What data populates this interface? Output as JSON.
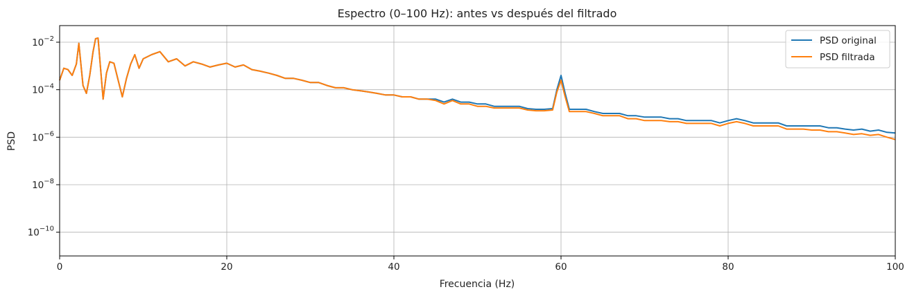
{
  "chart_data": {
    "type": "line",
    "title": "Espectro (0–100 Hz): antes vs después del filtrado",
    "xlabel": "Frecuencia (Hz)",
    "ylabel": "PSD",
    "xlim": [
      0,
      100
    ],
    "ylim": [
      1e-11,
      0.05
    ],
    "yscale": "log",
    "grid": true,
    "legend_position": "top-right",
    "x_ticks": [
      0,
      20,
      40,
      60,
      80,
      100
    ],
    "y_ticks": [
      {
        "value": 1e-10,
        "base": "10",
        "exp": "−10"
      },
      {
        "value": 1e-08,
        "base": "10",
        "exp": "−8"
      },
      {
        "value": 1e-06,
        "base": "10",
        "exp": "−6"
      },
      {
        "value": 0.0001,
        "base": "10",
        "exp": "−4"
      },
      {
        "value": 0.01,
        "base": "10",
        "exp": "−2"
      }
    ],
    "series": [
      {
        "name": "PSD original",
        "color": "#1f77b4",
        "x": [
          0,
          0.5,
          1,
          1.5,
          2,
          2.3,
          2.8,
          3.2,
          3.6,
          4,
          4.3,
          4.6,
          4.9,
          5.2,
          5.6,
          6,
          6.5,
          7,
          7.5,
          8,
          8.5,
          9,
          9.5,
          10,
          11,
          12,
          13,
          14,
          15,
          16,
          17,
          18,
          19,
          20,
          21,
          22,
          23,
          24,
          25,
          26,
          27,
          28,
          29,
          30,
          31,
          32,
          33,
          34,
          35,
          36,
          37,
          38,
          39,
          40,
          41,
          42,
          43,
          44,
          45,
          46,
          47,
          48,
          49,
          50,
          51,
          52,
          53,
          54,
          55,
          56,
          57,
          58,
          59,
          59.5,
          60,
          60.5,
          61,
          62,
          63,
          64,
          65,
          66,
          67,
          68,
          69,
          70,
          71,
          72,
          73,
          74,
          75,
          76,
          77,
          78,
          79,
          80,
          81,
          82,
          83,
          84,
          85,
          86,
          87,
          88,
          89,
          90,
          91,
          92,
          93,
          94,
          95,
          96,
          97,
          98,
          99,
          100
        ],
        "values": [
          0.00025,
          0.0008,
          0.0007,
          0.0004,
          0.0012,
          0.009,
          0.00015,
          7e-05,
          0.0004,
          0.004,
          0.014,
          0.015,
          0.0008,
          4e-05,
          0.0005,
          0.0015,
          0.0013,
          0.00025,
          5e-05,
          0.0003,
          0.0012,
          0.003,
          0.0008,
          0.002,
          0.003,
          0.004,
          0.0015,
          0.002,
          0.001,
          0.0015,
          0.0012,
          0.0009,
          0.0011,
          0.0013,
          0.0009,
          0.0011,
          0.0007,
          0.0006,
          0.0005,
          0.0004,
          0.0003,
          0.0003,
          0.00025,
          0.0002,
          0.0002,
          0.00015,
          0.00012,
          0.00012,
          0.0001,
          9e-05,
          8e-05,
          7e-05,
          6e-05,
          6e-05,
          5e-05,
          5e-05,
          4e-05,
          4e-05,
          4e-05,
          3e-05,
          4e-05,
          3e-05,
          3e-05,
          2.5e-05,
          2.5e-05,
          2e-05,
          2e-05,
          2e-05,
          2e-05,
          1.6e-05,
          1.5e-05,
          1.5e-05,
          1.6e-05,
          0.0001,
          0.0004,
          7e-05,
          1.5e-05,
          1.5e-05,
          1.5e-05,
          1.2e-05,
          1e-05,
          1e-05,
          1e-05,
          8e-06,
          8e-06,
          7e-06,
          7e-06,
          7e-06,
          6e-06,
          6e-06,
          5e-06,
          5e-06,
          5e-06,
          5e-06,
          4e-06,
          5e-06,
          6e-06,
          5e-06,
          4e-06,
          4e-06,
          4e-06,
          4e-06,
          3e-06,
          3e-06,
          3e-06,
          3e-06,
          3e-06,
          2.5e-06,
          2.5e-06,
          2.2e-06,
          2e-06,
          2.2e-06,
          1.8e-06,
          2e-06,
          1.6e-06,
          1.5e-06
        ]
      },
      {
        "name": "PSD filtrada",
        "color": "#ff7f0e",
        "x": [
          0,
          0.5,
          1,
          1.5,
          2,
          2.3,
          2.8,
          3.2,
          3.6,
          4,
          4.3,
          4.6,
          4.9,
          5.2,
          5.6,
          6,
          6.5,
          7,
          7.5,
          8,
          8.5,
          9,
          9.5,
          10,
          11,
          12,
          13,
          14,
          15,
          16,
          17,
          18,
          19,
          20,
          21,
          22,
          23,
          24,
          25,
          26,
          27,
          28,
          29,
          30,
          31,
          32,
          33,
          34,
          35,
          36,
          37,
          38,
          39,
          40,
          41,
          42,
          43,
          44,
          45,
          46,
          47,
          48,
          49,
          50,
          51,
          52,
          53,
          54,
          55,
          56,
          57,
          58,
          59,
          59.5,
          60,
          60.5,
          61,
          62,
          63,
          64,
          65,
          66,
          67,
          68,
          69,
          70,
          71,
          72,
          73,
          74,
          75,
          76,
          77,
          78,
          79,
          80,
          81,
          82,
          83,
          84,
          85,
          86,
          87,
          88,
          89,
          90,
          91,
          92,
          93,
          94,
          95,
          96,
          97,
          98,
          99,
          100
        ],
        "values": [
          0.00025,
          0.0008,
          0.0007,
          0.0004,
          0.0012,
          0.009,
          0.00015,
          7e-05,
          0.0004,
          0.004,
          0.014,
          0.015,
          0.0008,
          4e-05,
          0.0005,
          0.0015,
          0.0013,
          0.00025,
          5e-05,
          0.0003,
          0.0012,
          0.003,
          0.0008,
          0.002,
          0.003,
          0.004,
          0.0015,
          0.002,
          0.001,
          0.0015,
          0.0012,
          0.0009,
          0.0011,
          0.0013,
          0.0009,
          0.0011,
          0.0007,
          0.0006,
          0.0005,
          0.0004,
          0.0003,
          0.0003,
          0.00025,
          0.0002,
          0.0002,
          0.00015,
          0.00012,
          0.00012,
          0.0001,
          9e-05,
          8e-05,
          7e-05,
          6e-05,
          6e-05,
          5e-05,
          5e-05,
          4e-05,
          4e-05,
          3.5e-05,
          2.5e-05,
          3.5e-05,
          2.5e-05,
          2.5e-05,
          2e-05,
          2e-05,
          1.7e-05,
          1.7e-05,
          1.7e-05,
          1.7e-05,
          1.4e-05,
          1.3e-05,
          1.3e-05,
          1.4e-05,
          8e-05,
          0.00025,
          5e-05,
          1.2e-05,
          1.2e-05,
          1.2e-05,
          1e-05,
          8e-06,
          8e-06,
          8e-06,
          6e-06,
          6e-06,
          5e-06,
          5e-06,
          5e-06,
          4.5e-06,
          4.5e-06,
          3.8e-06,
          3.8e-06,
          3.8e-06,
          3.8e-06,
          3e-06,
          3.8e-06,
          4.5e-06,
          3.8e-06,
          3e-06,
          3e-06,
          3e-06,
          3e-06,
          2.2e-06,
          2.2e-06,
          2.2e-06,
          2e-06,
          2e-06,
          1.7e-06,
          1.7e-06,
          1.5e-06,
          1.3e-06,
          1.4e-06,
          1.2e-06,
          1.3e-06,
          1e-06,
          8e-07
        ]
      }
    ]
  }
}
